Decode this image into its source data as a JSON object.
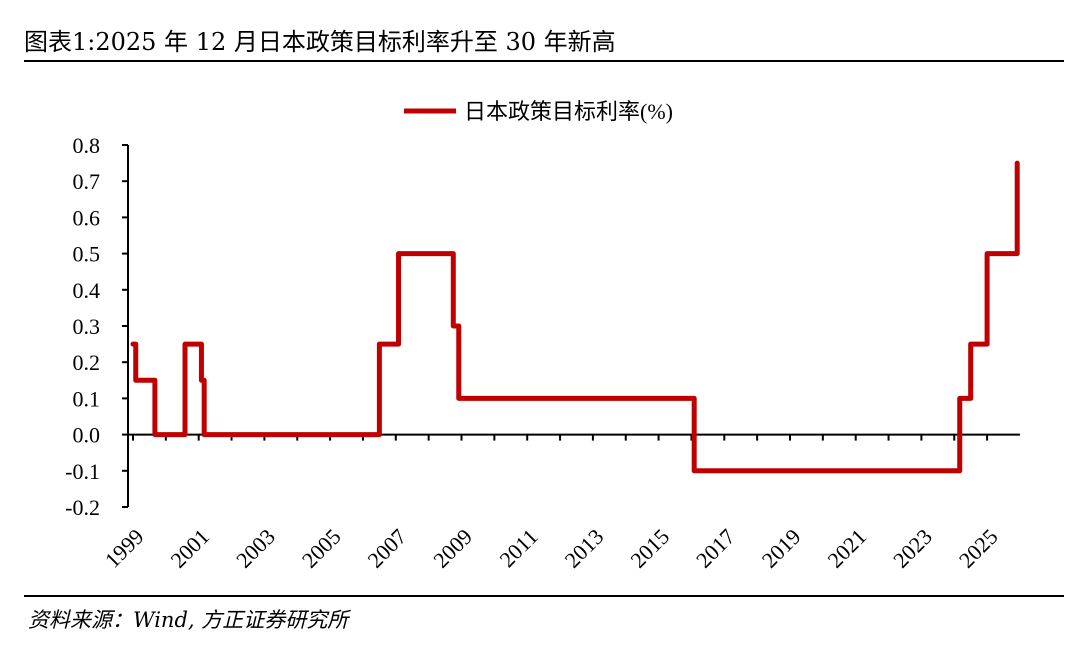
{
  "header": {
    "title": "图表1:2025 年 12 月日本政策目标利率升至 30 年新高"
  },
  "footer": {
    "source": "资料来源：Wind, 方正证券研究所"
  },
  "chart_data": {
    "type": "line",
    "step": true,
    "title": "",
    "xlabel": "",
    "ylabel": "",
    "legend_position": "top-center",
    "grid": false,
    "ylim": [
      -0.2,
      0.8
    ],
    "xlim": [
      "1999-01",
      "2025-12"
    ],
    "y_ticks": [
      "0.8",
      "0.7",
      "0.6",
      "0.5",
      "0.4",
      "0.3",
      "0.2",
      "0.1",
      "0.0",
      "-0.1",
      "-0.2"
    ],
    "x_ticks": [
      "1999",
      "2001",
      "2003",
      "2005",
      "2007",
      "2009",
      "2011",
      "2013",
      "2015",
      "2017",
      "2019",
      "2021",
      "2023",
      "2025"
    ],
    "series": [
      {
        "name": "日本政策目标利率(%)",
        "color": "#C00000",
        "points": [
          {
            "date": "1999-01",
            "value": 0.25
          },
          {
            "date": "1999-02",
            "value": 0.15
          },
          {
            "date": "1999-09",
            "value": 0.0
          },
          {
            "date": "2000-08",
            "value": 0.25
          },
          {
            "date": "2001-02",
            "value": 0.15
          },
          {
            "date": "2001-03",
            "value": 0.0
          },
          {
            "date": "2006-07",
            "value": 0.25
          },
          {
            "date": "2007-02",
            "value": 0.5
          },
          {
            "date": "2008-10",
            "value": 0.3
          },
          {
            "date": "2008-12",
            "value": 0.1
          },
          {
            "date": "2016-02",
            "value": -0.1
          },
          {
            "date": "2024-03",
            "value": 0.1
          },
          {
            "date": "2024-07",
            "value": 0.25
          },
          {
            "date": "2025-01",
            "value": 0.5
          },
          {
            "date": "2025-12",
            "value": 0.75
          }
        ]
      }
    ]
  }
}
